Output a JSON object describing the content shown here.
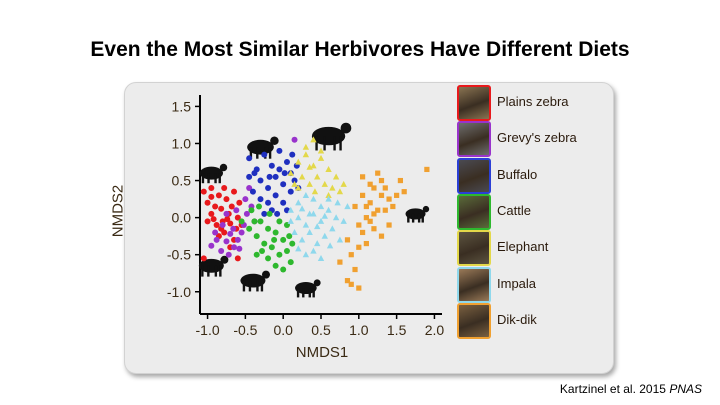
{
  "title": "Even the Most Similar Herbivores Have Different Diets",
  "citation": {
    "authors": "Kartzinel et al. 2015",
    "journal": "PNAS"
  },
  "chart_data": {
    "type": "scatter",
    "xlabel": "NMDS1",
    "ylabel": "NMDS2",
    "xlim": [
      -1.1,
      2.1
    ],
    "ylim": [
      -1.3,
      1.6
    ],
    "xticks": [
      "-1.0",
      "-0.5",
      "0.0",
      "0.5",
      "1.0",
      "1.5",
      "2.0"
    ],
    "yticks": [
      "1.5",
      "1.0",
      "0.5",
      "0.0",
      "-0.5",
      "-1.0"
    ],
    "legend_position": "right",
    "series": [
      {
        "name": "Plains zebra",
        "color": "#e8191c",
        "marker": "circle",
        "points": [
          [
            -1.05,
            0.35
          ],
          [
            -1.0,
            0.2
          ],
          [
            -0.95,
            0.4
          ],
          [
            -0.9,
            0.15
          ],
          [
            -0.95,
            0.05
          ],
          [
            -0.85,
            0.3
          ],
          [
            -0.82,
            0.12
          ],
          [
            -0.8,
            -0.05
          ],
          [
            -0.88,
            -0.1
          ],
          [
            -0.75,
            0.25
          ],
          [
            -0.72,
            0.05
          ],
          [
            -0.78,
            -0.2
          ],
          [
            -0.7,
            -0.08
          ],
          [
            -0.68,
            0.15
          ],
          [
            -0.65,
            -0.3
          ],
          [
            -0.62,
            -0.15
          ],
          [
            -0.6,
            0.0
          ],
          [
            -0.92,
            -0.02
          ],
          [
            -1.0,
            -0.05
          ],
          [
            -0.85,
            -0.25
          ],
          [
            -0.7,
            -0.4
          ],
          [
            -0.6,
            -0.55
          ],
          [
            -0.78,
            0.4
          ],
          [
            -0.65,
            0.35
          ],
          [
            -0.58,
            0.2
          ],
          [
            -0.55,
            -0.1
          ],
          [
            -0.95,
            0.28
          ],
          [
            -0.74,
            -0.02
          ],
          [
            -0.82,
            -0.15
          ],
          [
            -1.05,
            -0.55
          ]
        ]
      },
      {
        "name": "Grevy's zebra",
        "color": "#9933cc",
        "marker": "circle",
        "points": [
          [
            -0.95,
            -0.38
          ],
          [
            -0.88,
            -0.3
          ],
          [
            -0.82,
            -0.45
          ],
          [
            -0.75,
            -0.32
          ],
          [
            -0.7,
            -0.22
          ],
          [
            -0.72,
            -0.5
          ],
          [
            -0.65,
            -0.4
          ],
          [
            -0.6,
            -0.3
          ],
          [
            -0.55,
            -0.2
          ],
          [
            -0.52,
            -0.1
          ],
          [
            -0.48,
            0.05
          ],
          [
            -0.5,
            0.25
          ],
          [
            -0.45,
            0.4
          ],
          [
            -0.42,
            0.15
          ],
          [
            -0.58,
            -0.42
          ],
          [
            -0.8,
            -0.1
          ],
          [
            -0.75,
            0.05
          ],
          [
            -0.9,
            -0.2
          ],
          [
            -0.62,
            0.1
          ],
          [
            0.15,
            1.05
          ],
          [
            -0.38,
            -0.05
          ],
          [
            -0.66,
            -0.15
          ]
        ]
      },
      {
        "name": "Buffalo",
        "color": "#1f2fbf",
        "marker": "circle",
        "points": [
          [
            -0.45,
            0.8
          ],
          [
            -0.35,
            0.65
          ],
          [
            -0.25,
            0.85
          ],
          [
            -0.15,
            0.7
          ],
          [
            -0.05,
            0.9
          ],
          [
            0.05,
            0.75
          ],
          [
            -0.3,
            0.5
          ],
          [
            -0.2,
            0.4
          ],
          [
            -0.1,
            0.55
          ],
          [
            0.0,
            0.45
          ],
          [
            0.1,
            0.6
          ],
          [
            -0.4,
            0.35
          ],
          [
            -0.3,
            0.25
          ],
          [
            -0.2,
            0.2
          ],
          [
            -0.1,
            0.3
          ],
          [
            0.0,
            0.2
          ],
          [
            0.1,
            0.35
          ],
          [
            0.15,
            0.5
          ],
          [
            -0.25,
            0.05
          ],
          [
            -0.15,
            0.1
          ],
          [
            0.05,
            0.1
          ],
          [
            -0.05,
            0.65
          ],
          [
            -0.38,
            0.6
          ],
          [
            0.12,
            0.85
          ],
          [
            -0.18,
            0.55
          ],
          [
            0.2,
            0.4
          ],
          [
            -0.45,
            0.55
          ],
          [
            -0.08,
            0.05
          ],
          [
            0.02,
            0.6
          ],
          [
            0.18,
            0.7
          ]
        ]
      },
      {
        "name": "Cattle",
        "color": "#2eb82e",
        "marker": "circle",
        "points": [
          [
            -0.55,
            -0.05
          ],
          [
            -0.45,
            -0.15
          ],
          [
            -0.35,
            -0.25
          ],
          [
            -0.3,
            -0.05
          ],
          [
            -0.2,
            -0.15
          ],
          [
            -0.1,
            -0.2
          ],
          [
            0.0,
            -0.3
          ],
          [
            0.05,
            -0.1
          ],
          [
            -0.25,
            -0.35
          ],
          [
            -0.15,
            -0.4
          ],
          [
            -0.05,
            -0.5
          ],
          [
            0.05,
            -0.45
          ],
          [
            0.1,
            -0.6
          ],
          [
            -0.1,
            -0.65
          ],
          [
            -0.2,
            -0.55
          ],
          [
            -0.35,
            -0.5
          ],
          [
            -0.42,
            0.1
          ],
          [
            -0.32,
            0.15
          ],
          [
            -0.18,
            0.05
          ],
          [
            -0.05,
            -0.05
          ],
          [
            0.0,
            -0.7
          ],
          [
            0.12,
            -0.35
          ],
          [
            -0.28,
            -0.45
          ],
          [
            -0.12,
            -0.3
          ],
          [
            -0.38,
            -0.05
          ],
          [
            0.08,
            -0.25
          ]
        ]
      },
      {
        "name": "Elephant",
        "color": "#e3d84a",
        "marker": "triangle",
        "points": [
          [
            0.1,
            0.6
          ],
          [
            0.2,
            0.75
          ],
          [
            0.3,
            0.85
          ],
          [
            0.4,
            0.7
          ],
          [
            0.5,
            0.8
          ],
          [
            0.6,
            0.65
          ],
          [
            0.7,
            0.55
          ],
          [
            0.25,
            0.55
          ],
          [
            0.35,
            0.45
          ],
          [
            0.45,
            0.55
          ],
          [
            0.55,
            0.45
          ],
          [
            0.65,
            0.4
          ],
          [
            0.75,
            0.35
          ],
          [
            0.3,
            0.95
          ],
          [
            0.4,
            1.05
          ],
          [
            0.5,
            0.9
          ],
          [
            0.2,
            0.4
          ],
          [
            0.6,
            0.3
          ],
          [
            0.8,
            0.45
          ],
          [
            0.15,
            0.45
          ],
          [
            0.42,
            0.35
          ],
          [
            0.35,
            0.68
          ]
        ]
      },
      {
        "name": "Impala",
        "color": "#8fd8ec",
        "marker": "triangle",
        "points": [
          [
            0.1,
            0.1
          ],
          [
            0.2,
            0.0
          ],
          [
            0.3,
            -0.1
          ],
          [
            0.4,
            0.05
          ],
          [
            0.5,
            -0.05
          ],
          [
            0.6,
            0.1
          ],
          [
            0.7,
            0.0
          ],
          [
            0.15,
            -0.2
          ],
          [
            0.25,
            -0.3
          ],
          [
            0.35,
            -0.2
          ],
          [
            0.45,
            -0.35
          ],
          [
            0.55,
            -0.25
          ],
          [
            0.65,
            -0.15
          ],
          [
            0.75,
            -0.3
          ],
          [
            0.2,
            0.2
          ],
          [
            0.3,
            0.3
          ],
          [
            0.4,
            0.25
          ],
          [
            0.5,
            0.15
          ],
          [
            0.6,
            0.25
          ],
          [
            0.8,
            -0.05
          ],
          [
            0.3,
            -0.5
          ],
          [
            0.4,
            -0.45
          ],
          [
            0.5,
            -0.55
          ],
          [
            0.1,
            -0.05
          ],
          [
            0.25,
            0.12
          ],
          [
            0.45,
            -0.12
          ],
          [
            0.62,
            -0.38
          ],
          [
            0.35,
            0.05
          ],
          [
            0.55,
            0.02
          ],
          [
            0.85,
            0.15
          ],
          [
            0.2,
            -0.42
          ],
          [
            0.72,
            0.2
          ]
        ]
      },
      {
        "name": "Dik-dik",
        "color": "#f0a030",
        "marker": "square",
        "points": [
          [
            0.85,
            -0.3
          ],
          [
            0.9,
            -0.5
          ],
          [
            0.95,
            -0.7
          ],
          [
            1.0,
            -0.4
          ],
          [
            1.05,
            -0.2
          ],
          [
            1.1,
            0.0
          ],
          [
            1.15,
            0.2
          ],
          [
            1.2,
            0.4
          ],
          [
            1.25,
            0.6
          ],
          [
            1.3,
            0.3
          ],
          [
            1.35,
            0.1
          ],
          [
            1.4,
            -0.1
          ],
          [
            1.45,
            0.15
          ],
          [
            1.2,
            -0.15
          ],
          [
            1.1,
            -0.35
          ],
          [
            1.0,
            -0.1
          ],
          [
            0.95,
            0.15
          ],
          [
            1.05,
            0.3
          ],
          [
            1.15,
            0.45
          ],
          [
            1.25,
            0.1
          ],
          [
            1.3,
            -0.25
          ],
          [
            1.35,
            0.4
          ],
          [
            1.5,
            0.3
          ],
          [
            1.55,
            0.5
          ],
          [
            1.6,
            0.35
          ],
          [
            1.9,
            0.65
          ],
          [
            0.9,
            -0.9
          ],
          [
            1.0,
            -0.95
          ],
          [
            0.85,
            -0.85
          ],
          [
            1.15,
            -0.05
          ],
          [
            1.2,
            0.05
          ],
          [
            1.4,
            0.25
          ],
          [
            0.75,
            -0.6
          ],
          [
            1.05,
            0.55
          ],
          [
            1.3,
            0.5
          ],
          [
            1.1,
            0.15
          ]
        ]
      }
    ],
    "silhouettes": [
      {
        "name": "elephant-silhouette",
        "x": 0.6,
        "y": 1.1,
        "size": 40
      },
      {
        "name": "buffalo-silhouette",
        "x": -0.3,
        "y": 0.95,
        "size": 32
      },
      {
        "name": "zebra-silhouette",
        "x": -0.95,
        "y": 0.6,
        "size": 28
      },
      {
        "name": "zebra-silhouette-2",
        "x": -0.95,
        "y": -0.65,
        "size": 30
      },
      {
        "name": "cattle-silhouette",
        "x": -0.4,
        "y": -0.85,
        "size": 30
      },
      {
        "name": "impala-silhouette",
        "x": 0.3,
        "y": -0.95,
        "size": 26
      },
      {
        "name": "dikdik-silhouette",
        "x": 1.75,
        "y": 0.05,
        "size": 24
      }
    ],
    "legend_border_colors": [
      "#e8191c",
      "#9933cc",
      "#2b3fd6",
      "#2eb82e",
      "#e3d84a",
      "#8fd8ec",
      "#f0a030"
    ]
  }
}
